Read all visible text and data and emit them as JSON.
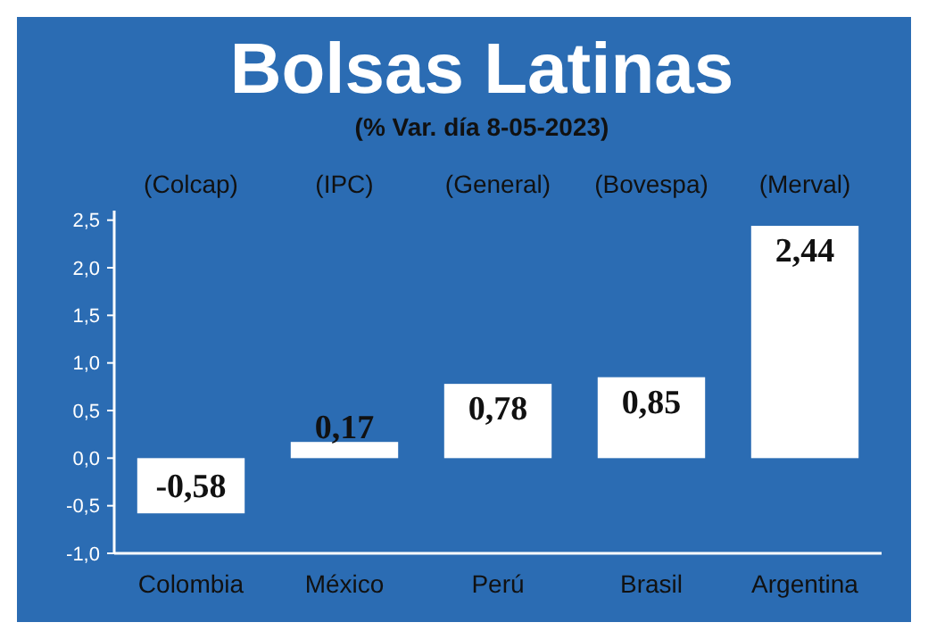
{
  "chart_data": {
    "type": "bar",
    "title": "Bolsas Latinas",
    "subtitle": "(% Var. día 8-05-2023)",
    "categories": [
      "Colombia",
      "México",
      "Perú",
      "Brasil",
      "Argentina"
    ],
    "values": [
      -0.58,
      0.17,
      0.78,
      0.85,
      2.44
    ],
    "value_labels": [
      "-0,58",
      "0,17",
      "0,78",
      "0,85",
      "2,44"
    ],
    "color": "#ffffff",
    "ylim": [
      -1,
      2.6
    ],
    "yticks": [
      {
        "value": -1,
        "label": "-1,0"
      },
      {
        "value": -0.5,
        "label": "-0,5"
      },
      {
        "value": 0,
        "label": "0,0"
      },
      {
        "value": 0.5,
        "label": "0,5"
      },
      {
        "value": 1,
        "label": "1,0"
      },
      {
        "value": 1.5,
        "label": "1,5"
      },
      {
        "value": 2,
        "label": "2,0"
      },
      {
        "value": 2.5,
        "label": "2,5"
      }
    ],
    "annotations": [
      "(Colcap)",
      "(IPC)",
      "(General)",
      "(Bovespa)",
      "(Merval)"
    ],
    "grid": false
  }
}
